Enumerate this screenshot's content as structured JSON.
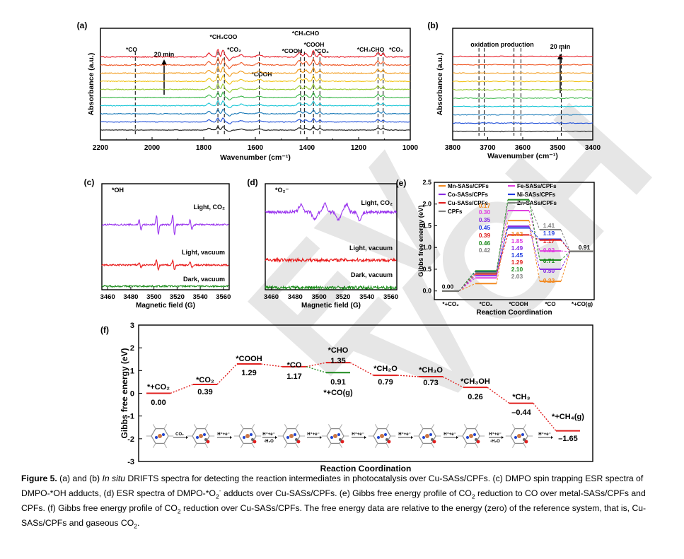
{
  "panel_labels": [
    "(a)",
    "(b)",
    "(c)",
    "(d)",
    "(e)",
    "(f)"
  ],
  "watermark": "EV - VCH",
  "chart_data": [
    {
      "panel": "(a)",
      "type": "line",
      "title": "",
      "xlabel": "Wavenumber (cm⁻¹)",
      "ylabel": "Absorbance (a.u.)",
      "xlim": [
        2200,
        1000
      ],
      "x_ticks": [
        "2200",
        "2000",
        "1800",
        "1600",
        "1400",
        "1200",
        "1000"
      ],
      "time_label": "20 min",
      "series_colors": [
        "#1a1a1a",
        "#1f4fd8",
        "#1a7ab8",
        "#19c6d6",
        "#3cb84a",
        "#99cc33",
        "#f2c318",
        "#f29a1a",
        "#ef5a28",
        "#e8202a"
      ],
      "annotations": [
        {
          "label": "*CO",
          "x": 2065
        },
        {
          "label": "*CH₃COO",
          "x": 1745
        },
        {
          "label": "*CO₂",
          "x": 1720
        },
        {
          "label": "*COOH",
          "x": 1585
        },
        {
          "label": "*COOH",
          "x": 1425
        },
        {
          "label": "*CH₃CHO",
          "x": 1410
        },
        {
          "label": "*COOH",
          "x": 1375
        },
        {
          "label": "*CO₃",
          "x": 1350
        },
        {
          "label": "*CH₃CHO",
          "x": 1125
        },
        {
          "label": "*CO₂",
          "x": 1105
        }
      ]
    },
    {
      "panel": "(b)",
      "type": "line",
      "xlabel": "Wavenumber (cm⁻¹)",
      "ylabel": "Absorbance (a.u.)",
      "xlim": [
        3800,
        3400
      ],
      "x_ticks": [
        "3800",
        "3700",
        "3600",
        "3500",
        "3400"
      ],
      "note": "oxidation production",
      "time_label": "20 min",
      "series_colors": [
        "#1a1a1a",
        "#1f4fd8",
        "#1a7ab8",
        "#19c6d6",
        "#3cb84a",
        "#99cc33",
        "#f2c318",
        "#f29a1a",
        "#ef5a28",
        "#e8202a"
      ],
      "annotations_x": [
        3725,
        3710,
        3625,
        3605,
        3490
      ]
    },
    {
      "panel": "(c)",
      "type": "line",
      "title": "*OH",
      "xlabel": "Magnetic field (G)",
      "xlim": [
        3455,
        3565
      ],
      "x_ticks": [
        "3460",
        "3480",
        "3500",
        "3520",
        "3540",
        "3560"
      ],
      "series": [
        {
          "name": "Light, CO₂",
          "color": "#9933ee"
        },
        {
          "name": "Light, vacuum",
          "color": "#e81818"
        },
        {
          "name": "Dark, vacuum",
          "color": "#1a8c1a"
        }
      ]
    },
    {
      "panel": "(d)",
      "type": "line",
      "title": "*O₂⁻",
      "xlabel": "Magnetic field (G)",
      "xlim": [
        3455,
        3565
      ],
      "x_ticks": [
        "3460",
        "3480",
        "3500",
        "3520",
        "3540",
        "3560"
      ],
      "series": [
        {
          "name": "Light, CO₂",
          "color": "#9933ee"
        },
        {
          "name": "Light, vacuum",
          "color": "#e81818"
        },
        {
          "name": "Dark, vacuum",
          "color": "#1a8c1a"
        }
      ]
    },
    {
      "panel": "(e)",
      "type": "line",
      "xlabel": "Reaction Coordination",
      "ylabel": "Gibbs free energy (eV)",
      "ylim": [
        -0.2,
        2.5
      ],
      "y_ticks": [
        "0.0",
        "0.5",
        "1.0",
        "1.5",
        "2.0",
        "2.5"
      ],
      "categories": [
        "*+CO₂",
        "*CO₂",
        "*COOH",
        "*CO",
        "*+CO(g)"
      ],
      "series": [
        {
          "name": "Mn-SASs/CPFs",
          "color": "#f28a22",
          "values": [
            0,
            0.17,
            1.62,
            0.22,
            0.91
          ]
        },
        {
          "name": "Fe-SASs/CPFs",
          "color": "#e040e0",
          "values": [
            0,
            0.3,
            1.85,
            0.92,
            0.91
          ]
        },
        {
          "name": "Co-SASs/CPFs",
          "color": "#8a2be2",
          "values": [
            0,
            0.35,
            1.49,
            0.5,
            0.91
          ]
        },
        {
          "name": "Ni-SASs/CPFs",
          "color": "#1e3adf",
          "values": [
            0,
            0.45,
            1.45,
            1.19,
            0.91
          ]
        },
        {
          "name": "Cu-SASs/CPFs",
          "color": "#e0201f",
          "values": [
            0,
            0.39,
            1.29,
            1.17,
            0.91
          ]
        },
        {
          "name": "Zn-SASs/CPFs",
          "color": "#1e8a1e",
          "values": [
            0,
            0.46,
            2.1,
            0.71,
            0.91
          ]
        },
        {
          "name": "CPFs",
          "color": "#808080",
          "values": [
            0,
            0.42,
            2.03,
            1.41,
            0.91
          ]
        }
      ],
      "value_labels": {
        "start": "0.00",
        "co2": [
          "0.17",
          "0.30",
          "0.35",
          "0.45",
          "0.39",
          "0.46",
          "0.42"
        ],
        "cooh": [
          "1.62",
          "1.85",
          "1.49",
          "1.45",
          "1.29",
          "2.10",
          "2.03"
        ],
        "co": [
          "1.41",
          "1.19",
          "1.17",
          "0.92",
          "0.71",
          "0.50",
          "0.22"
        ],
        "end": "0.91"
      }
    },
    {
      "panel": "(f)",
      "type": "line",
      "xlabel": "Reaction Coordination",
      "ylabel": "Gibbs free energy (eV)",
      "ylim": [
        -3,
        3
      ],
      "y_ticks": [
        "3",
        "2",
        "1",
        "0",
        "-1",
        "-2",
        "-3"
      ],
      "steps": [
        {
          "label": "*+CO₂",
          "value": 0.0,
          "value_text": "0.00"
        },
        {
          "label": "*CO₂",
          "value": 0.39,
          "value_text": "0.39"
        },
        {
          "label": "*COOH",
          "value": 1.29,
          "value_text": "1.29"
        },
        {
          "label": "*CO",
          "value": 1.17,
          "value_text": "1.17"
        },
        {
          "label": "*CHO",
          "value": 1.35,
          "value_text": "1.35"
        },
        {
          "label": "*CH₂O",
          "value": 0.79,
          "value_text": "0.79"
        },
        {
          "label": "*CH₃O",
          "value": 0.73,
          "value_text": "0.73"
        },
        {
          "label": "*CH₃OH",
          "value": 0.26,
          "value_text": "0.26"
        },
        {
          "label": "*CH₃",
          "value": -0.44,
          "value_text": "–0.44"
        },
        {
          "label": "*+CH₄(g)",
          "value": -1.65,
          "value_text": "–1.65"
        }
      ],
      "branch": {
        "label": "*+CO(g)",
        "value": 0.91,
        "value_text": "0.91"
      },
      "step_texts": [
        "CO₂",
        "H⁺+e⁻",
        "H⁺+e⁻ -H₂O",
        "H⁺+e⁻",
        "H⁺+e⁻",
        "H⁺+e⁻",
        "H⁺+e⁻",
        "H⁺+e⁻ -H₂O",
        "H⁺+e⁻"
      ]
    }
  ],
  "caption": {
    "label": "Figure 5.",
    "parts": [
      " (a) and (b) ",
      "In situ",
      " DRIFTS spectra for detecting the reaction intermediates in photocatalysis over Cu-SASs/CPFs. (c) DMPO spin trapping ESR spectra of DMPO-*OH adducts, (d) ESR spectra of DMPO-*O",
      "2",
      "-",
      " adducts over Cu-SASs/CPFs. (e) Gibbs free energy profile of CO",
      "2",
      " reduction to CO over metal-SASs/CPFs and CPFs. (f) Gibbs free energy profile of CO",
      "2",
      " reduction over Cu-SASs/CPFs. The free energy data are relative to the energy (zero) of the reference system, that is, Cu-SASs/CPFs and gaseous CO",
      "2",
      "."
    ]
  }
}
